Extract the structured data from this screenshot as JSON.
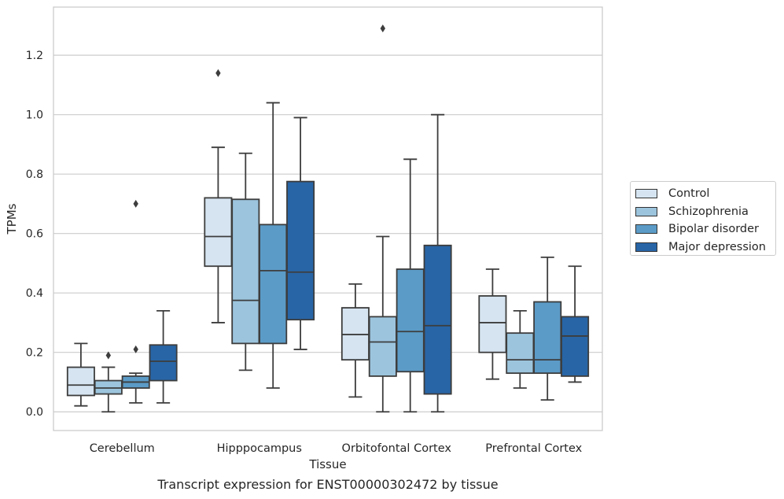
{
  "chart_data": {
    "type": "box",
    "caption": "Transcript expression for ENST00000302472 by tissue",
    "xlabel": "Tissue",
    "ylabel": "TPMs",
    "ylim": [
      -0.063,
      1.362
    ],
    "yticks": [
      0.0,
      0.2,
      0.4,
      0.6,
      0.8,
      1.0,
      1.2
    ],
    "ytick_labels": [
      "0.0",
      "0.2",
      "0.4",
      "0.6",
      "0.8",
      "1.0",
      "1.2"
    ],
    "grid": "horizontal",
    "legend_position": "outside-right",
    "categories": [
      "Cerebellum",
      "Hipppocampus",
      "Orbitofontal Cortex",
      "Prefrontal Cortex"
    ],
    "series": [
      {
        "name": "Control",
        "color": "#d6e4f1",
        "boxes": [
          {
            "whislo": 0.02,
            "q1": 0.055,
            "med": 0.09,
            "q3": 0.15,
            "whishi": 0.23,
            "fliers": []
          },
          {
            "whislo": 0.3,
            "q1": 0.49,
            "med": 0.59,
            "q3": 0.72,
            "whishi": 0.89,
            "fliers": [
              1.14
            ]
          },
          {
            "whislo": 0.05,
            "q1": 0.175,
            "med": 0.26,
            "q3": 0.35,
            "whishi": 0.43,
            "fliers": []
          },
          {
            "whislo": 0.11,
            "q1": 0.2,
            "med": 0.3,
            "q3": 0.39,
            "whishi": 0.48,
            "fliers": []
          }
        ]
      },
      {
        "name": "Schizophrenia",
        "color": "#9cc4dd",
        "boxes": [
          {
            "whislo": 0.0,
            "q1": 0.06,
            "med": 0.08,
            "q3": 0.105,
            "whishi": 0.15,
            "fliers": [
              0.19
            ]
          },
          {
            "whislo": 0.14,
            "q1": 0.23,
            "med": 0.375,
            "q3": 0.715,
            "whishi": 0.87,
            "fliers": []
          },
          {
            "whislo": 0.0,
            "q1": 0.12,
            "med": 0.235,
            "q3": 0.32,
            "whishi": 0.59,
            "fliers": [
              1.29
            ]
          },
          {
            "whislo": 0.08,
            "q1": 0.13,
            "med": 0.175,
            "q3": 0.265,
            "whishi": 0.34,
            "fliers": []
          }
        ]
      },
      {
        "name": "Bipolar disorder",
        "color": "#5b9bc7",
        "boxes": [
          {
            "whislo": 0.03,
            "q1": 0.08,
            "med": 0.1,
            "q3": 0.12,
            "whishi": 0.13,
            "fliers": [
              0.21,
              0.7
            ]
          },
          {
            "whislo": 0.08,
            "q1": 0.23,
            "med": 0.475,
            "q3": 0.63,
            "whishi": 1.04,
            "fliers": []
          },
          {
            "whislo": 0.0,
            "q1": 0.135,
            "med": 0.27,
            "q3": 0.48,
            "whishi": 0.85,
            "fliers": []
          },
          {
            "whislo": 0.04,
            "q1": 0.13,
            "med": 0.175,
            "q3": 0.37,
            "whishi": 0.52,
            "fliers": []
          }
        ]
      },
      {
        "name": "Major depression",
        "color": "#2865a6",
        "boxes": [
          {
            "whislo": 0.03,
            "q1": 0.105,
            "med": 0.17,
            "q3": 0.225,
            "whishi": 0.34,
            "fliers": []
          },
          {
            "whislo": 0.21,
            "q1": 0.31,
            "med": 0.47,
            "q3": 0.775,
            "whishi": 0.99,
            "fliers": []
          },
          {
            "whislo": 0.0,
            "q1": 0.06,
            "med": 0.29,
            "q3": 0.56,
            "whishi": 1.0,
            "fliers": []
          },
          {
            "whislo": 0.1,
            "q1": 0.12,
            "med": 0.255,
            "q3": 0.32,
            "whishi": 0.49,
            "fliers": []
          }
        ]
      }
    ]
  }
}
